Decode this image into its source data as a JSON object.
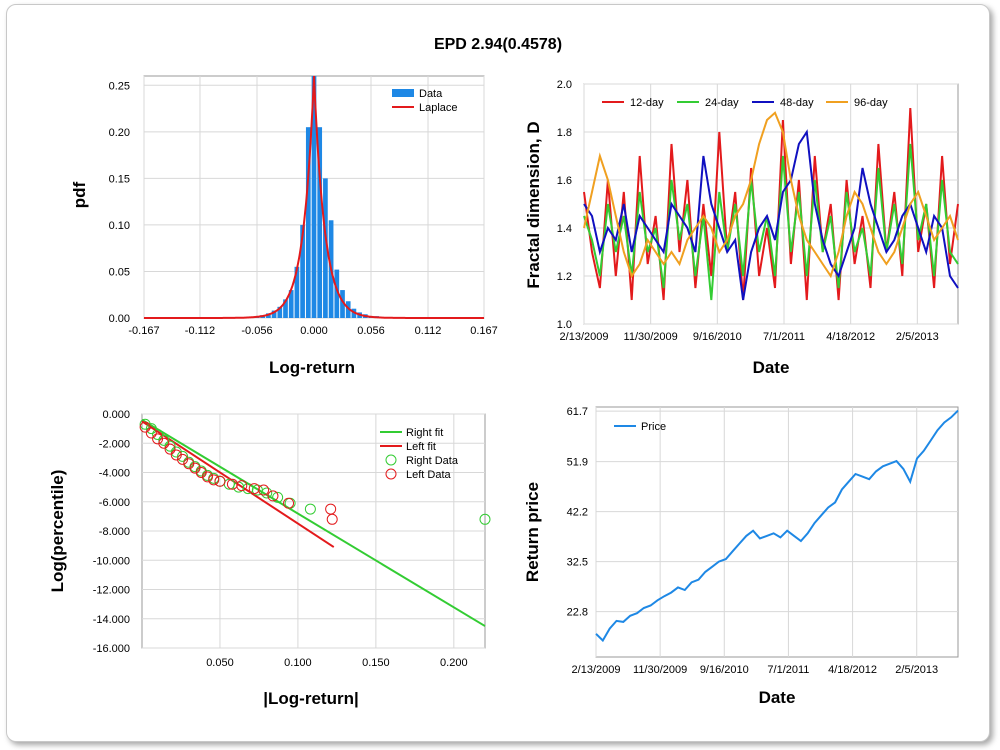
{
  "title": "EPD 2.94(0.4578)",
  "colors": {
    "blue": "#1e88e5",
    "red": "#e31a1c",
    "green": "#33cc33",
    "darkblue": "#1010c0",
    "orange": "#f0a020",
    "grid": "#d8d8d8"
  },
  "chart_data": [
    {
      "id": "hist",
      "type": "bar",
      "xlabel": "Log-return",
      "ylabel": "pdf",
      "xlim": [
        -0.167,
        0.167
      ],
      "ylim": [
        0,
        0.26
      ],
      "xticks": [
        "-0.167",
        "-0.112",
        "-0.056",
        "0.000",
        "0.056",
        "0.112",
        "0.167"
      ],
      "xtick_values": [
        -0.167,
        -0.112,
        -0.056,
        0.0,
        0.056,
        0.112,
        0.167
      ],
      "yticks": [
        "0.00",
        "0.05",
        "0.10",
        "0.15",
        "0.20",
        "0.25"
      ],
      "ytick_values": [
        0,
        0.05,
        0.1,
        0.15,
        0.2,
        0.25
      ],
      "legend": [
        "Data",
        "Laplace"
      ],
      "bin_width": 0.0056,
      "bins_x": [
        -0.0728,
        -0.0672,
        -0.0616,
        -0.056,
        -0.0504,
        -0.0448,
        -0.0392,
        -0.0336,
        -0.028,
        -0.0224,
        -0.0168,
        -0.0112,
        -0.0056,
        0.0,
        0.0056,
        0.0112,
        0.0168,
        0.0224,
        0.028,
        0.0336,
        0.0392,
        0.0448,
        0.0504,
        0.056,
        0.0616,
        0.0672,
        0.0728,
        0.0784,
        0.084,
        0.0896
      ],
      "bins_y": [
        0.001,
        0.001,
        0.001,
        0.002,
        0.003,
        0.005,
        0.008,
        0.012,
        0.02,
        0.03,
        0.055,
        0.1,
        0.205,
        0.26,
        0.205,
        0.15,
        0.105,
        0.052,
        0.03,
        0.018,
        0.01,
        0.006,
        0.004,
        0.002,
        0.002,
        0.001,
        0.001,
        0.0005,
        0.0005,
        0.001
      ],
      "laplace_mu": 0.0,
      "laplace_b": 0.0105,
      "laplace_scale": 0.0055
    },
    {
      "id": "fractal",
      "type": "line",
      "xlabel": "Date",
      "ylabel": "Fractal dimension, D",
      "ylim": [
        1.0,
        2.0
      ],
      "yticks": [
        "1.0",
        "1.2",
        "1.4",
        "1.6",
        "1.8",
        "2.0"
      ],
      "ytick_values": [
        1.0,
        1.2,
        1.4,
        1.6,
        1.8,
        2.0
      ],
      "xticks": [
        "2/13/2009",
        "11/30/2009",
        "9/16/2010",
        "7/1/2011",
        "4/18/2012",
        "2/5/2013"
      ],
      "series": [
        {
          "name": "12-day",
          "color": "#e31a1c",
          "values": [
            1.55,
            1.3,
            1.15,
            1.6,
            1.2,
            1.55,
            1.1,
            1.7,
            1.25,
            1.45,
            1.1,
            1.75,
            1.3,
            1.6,
            1.15,
            1.5,
            1.2,
            1.8,
            1.3,
            1.55,
            1.1,
            1.65,
            1.2,
            1.4,
            1.15,
            1.85,
            1.25,
            1.6,
            1.1,
            1.7,
            1.3,
            1.5,
            1.1,
            1.6,
            1.25,
            1.45,
            1.15,
            1.75,
            1.3,
            1.55,
            1.2,
            1.9,
            1.3,
            1.5,
            1.15,
            1.7,
            1.25,
            1.5
          ]
        },
        {
          "name": "24-day",
          "color": "#33cc33",
          "values": [
            1.45,
            1.35,
            1.2,
            1.5,
            1.3,
            1.45,
            1.2,
            1.55,
            1.3,
            1.4,
            1.15,
            1.6,
            1.35,
            1.5,
            1.2,
            1.45,
            1.1,
            1.55,
            1.3,
            1.5,
            1.2,
            1.6,
            1.3,
            1.45,
            1.2,
            1.7,
            1.3,
            1.55,
            1.2,
            1.6,
            1.3,
            1.45,
            1.15,
            1.55,
            1.3,
            1.4,
            1.2,
            1.65,
            1.3,
            1.5,
            1.25,
            1.75,
            1.35,
            1.5,
            1.2,
            1.6,
            1.3,
            1.25
          ]
        },
        {
          "name": "48-day",
          "color": "#1010c0",
          "values": [
            1.5,
            1.45,
            1.3,
            1.4,
            1.35,
            1.5,
            1.3,
            1.45,
            1.4,
            1.35,
            1.3,
            1.5,
            1.45,
            1.4,
            1.3,
            1.7,
            1.5,
            1.4,
            1.3,
            1.35,
            1.1,
            1.3,
            1.4,
            1.45,
            1.35,
            1.55,
            1.6,
            1.75,
            1.8,
            1.5,
            1.35,
            1.25,
            1.2,
            1.3,
            1.4,
            1.65,
            1.5,
            1.4,
            1.3,
            1.35,
            1.45,
            1.5,
            1.4,
            1.3,
            1.45,
            1.4,
            1.2,
            1.15
          ]
        },
        {
          "name": "96-day",
          "color": "#f0a020",
          "values": [
            1.4,
            1.55,
            1.7,
            1.6,
            1.45,
            1.3,
            1.2,
            1.25,
            1.35,
            1.3,
            1.25,
            1.3,
            1.25,
            1.35,
            1.4,
            1.45,
            1.4,
            1.3,
            1.35,
            1.45,
            1.5,
            1.6,
            1.75,
            1.85,
            1.88,
            1.8,
            1.6,
            1.45,
            1.35,
            1.3,
            1.25,
            1.2,
            1.3,
            1.45,
            1.55,
            1.5,
            1.4,
            1.3,
            1.25,
            1.3,
            1.4,
            1.5,
            1.55,
            1.45,
            1.35,
            1.4,
            1.45,
            1.35
          ]
        }
      ]
    },
    {
      "id": "tails",
      "type": "scatter",
      "xlabel": "|Log-return|",
      "ylabel": "Log(percentile)",
      "xlim": [
        0,
        0.22
      ],
      "ylim": [
        -16,
        0
      ],
      "xticks": [
        "0.050",
        "0.100",
        "0.150",
        "0.200"
      ],
      "xtick_values": [
        0.05,
        0.1,
        0.15,
        0.2
      ],
      "yticks": [
        "0.000",
        "-2.000",
        "-4.000",
        "-6.000",
        "-8.000",
        "-10.000",
        "-12.000",
        "-14.000",
        "-16.000"
      ],
      "ytick_values": [
        0,
        -2,
        -4,
        -6,
        -8,
        -10,
        -12,
        -14,
        -16
      ],
      "legend": [
        "Right fit",
        "Left fit",
        "Right Data",
        "Left Data"
      ],
      "right_fit": {
        "x": [
          0.0,
          0.22
        ],
        "y": [
          -0.4,
          -14.5
        ]
      },
      "left_fit": {
        "x": [
          0.0,
          0.123
        ],
        "y": [
          -0.5,
          -9.1
        ]
      },
      "right_data": {
        "x": [
          0.002,
          0.006,
          0.01,
          0.014,
          0.018,
          0.022,
          0.026,
          0.03,
          0.034,
          0.038,
          0.042,
          0.046,
          0.05,
          0.056,
          0.062,
          0.068,
          0.074,
          0.08,
          0.087,
          0.095,
          0.108,
          0.22
        ],
        "y": [
          -0.7,
          -1.0,
          -1.4,
          -1.8,
          -2.2,
          -2.6,
          -2.9,
          -3.3,
          -3.6,
          -3.9,
          -4.2,
          -4.4,
          -4.6,
          -4.8,
          -5.0,
          -5.1,
          -5.2,
          -5.4,
          -5.7,
          -6.1,
          -6.5,
          -7.2
        ]
      },
      "left_data": {
        "x": [
          0.002,
          0.006,
          0.01,
          0.014,
          0.018,
          0.022,
          0.026,
          0.03,
          0.034,
          0.038,
          0.042,
          0.046,
          0.05,
          0.058,
          0.064,
          0.072,
          0.078,
          0.084,
          0.094,
          0.121,
          0.122
        ],
        "y": [
          -0.9,
          -1.3,
          -1.7,
          -2.0,
          -2.4,
          -2.8,
          -3.1,
          -3.4,
          -3.7,
          -4.0,
          -4.3,
          -4.5,
          -4.6,
          -4.8,
          -4.9,
          -5.1,
          -5.2,
          -5.6,
          -6.1,
          -6.5,
          -7.2
        ]
      }
    },
    {
      "id": "price",
      "type": "line",
      "xlabel": "Date",
      "ylabel": "Return price",
      "ylim": [
        14,
        62.5
      ],
      "yticks": [
        "61.7",
        "51.9",
        "42.2",
        "32.5",
        "22.8"
      ],
      "ytick_values": [
        61.7,
        51.9,
        42.2,
        32.5,
        22.8
      ],
      "xticks": [
        "2/13/2009",
        "11/30/2009",
        "9/16/2010",
        "7/1/2011",
        "4/18/2012",
        "2/5/2013"
      ],
      "legend": [
        "Price"
      ],
      "series": [
        {
          "name": "Price",
          "color": "#1e88e5",
          "values": [
            18.5,
            17.2,
            19.5,
            21,
            20.8,
            22,
            22.5,
            23.5,
            24,
            25,
            25.8,
            26.5,
            27.5,
            27,
            28.5,
            29,
            30.5,
            31.5,
            32.5,
            33,
            34.5,
            36,
            37.5,
            38.5,
            37,
            37.5,
            38,
            37.2,
            38.5,
            37.5,
            36.5,
            38,
            40,
            41.5,
            43,
            44,
            46.5,
            48,
            49.5,
            49,
            48.5,
            50,
            51,
            51.5,
            52,
            50.5,
            48,
            52.5,
            54,
            56,
            58,
            59.5,
            60.5,
            61.8
          ]
        }
      ]
    }
  ]
}
